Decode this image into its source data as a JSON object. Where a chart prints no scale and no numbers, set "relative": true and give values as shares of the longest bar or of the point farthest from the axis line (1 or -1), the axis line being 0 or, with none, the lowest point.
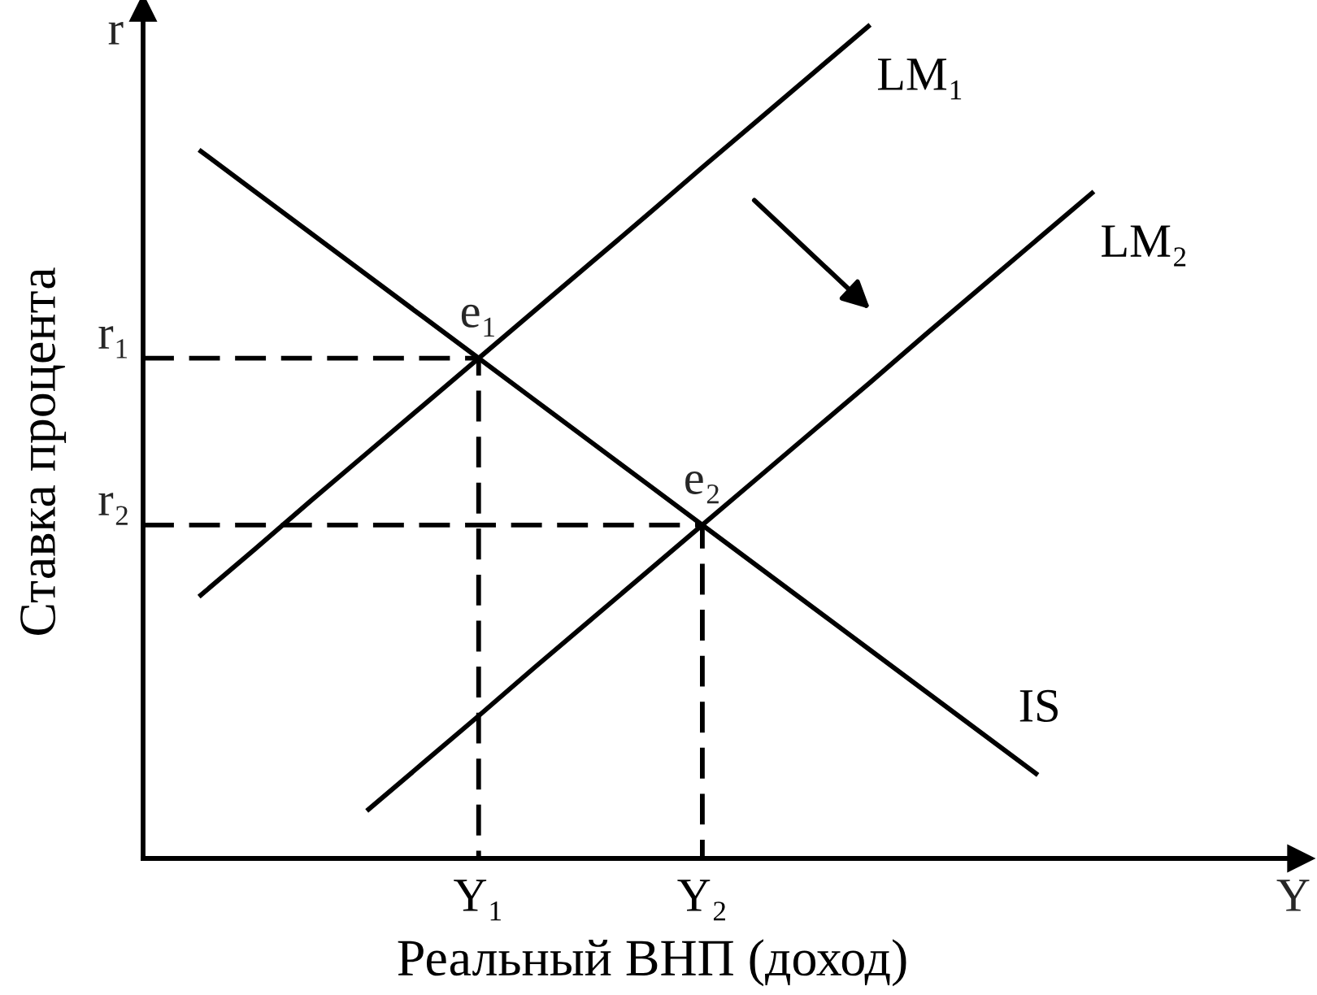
{
  "chart_data": {
    "type": "line",
    "relative": true,
    "line_style": "solid",
    "xlabel": "Реальный ВНП (доход)",
    "ylabel": "Ставка процента",
    "categories": [
      null,
      null,
      null,
      null,
      null,
      null,
      "Y₁",
      null,
      null,
      null,
      "Y₂",
      null,
      null,
      null,
      null,
      null,
      null,
      null,
      null,
      null,
      null
    ],
    "series": [
      {
        "name": "LM₁",
        "color": "#000000",
        "values": [
          null,
          0.314,
          0.371,
          0.429,
          0.486,
          0.543,
          0.6,
          0.657,
          0.714,
          0.771,
          0.829,
          0.886,
          0.943,
          1.0,
          null,
          null,
          null,
          null,
          null,
          null,
          null
        ]
      },
      {
        "name": "IS",
        "color": "#000000",
        "values": [
          null,
          0.85,
          0.8,
          0.75,
          0.7,
          0.65,
          0.6,
          0.55,
          0.5,
          0.45,
          0.4,
          0.35,
          0.3,
          0.25,
          0.2,
          0.15,
          0.1,
          null,
          null,
          null,
          null
        ]
      },
      {
        "name": "LM₂",
        "color": "#000000",
        "values": [
          null,
          null,
          null,
          null,
          0.057,
          0.114,
          0.171,
          0.229,
          0.286,
          0.343,
          0.4,
          0.457,
          0.514,
          0.571,
          0.629,
          0.686,
          0.743,
          0.8,
          null,
          null,
          null
        ]
      },
      {
        "type": "step",
        "color": "#000000",
        "line_style": "dashed",
        "values": [
          0.6,
          0.6,
          0.6,
          0.6,
          0.6,
          0.6,
          0,
          null,
          null,
          null,
          null,
          null,
          null,
          null,
          null,
          null,
          null,
          null,
          null,
          null,
          null
        ]
      },
      {
        "type": "step",
        "color": "#000000",
        "line_style": "dashed",
        "values": [
          0.4,
          0.4,
          0.4,
          0.4,
          0.4,
          0.4,
          0.4,
          0.4,
          0.4,
          0.4,
          0,
          null,
          null,
          null,
          null,
          null,
          null,
          null,
          null,
          null,
          null
        ]
      }
    ],
    "annotations": [
      "r",
      "Y",
      "r₁",
      "r₂",
      {
        "text": "e₁",
        "x": "Y₁",
        "y": 0.6
      },
      {
        "text": "e₂",
        "x": "Y₂",
        "y": 0.4
      }
    ]
  }
}
